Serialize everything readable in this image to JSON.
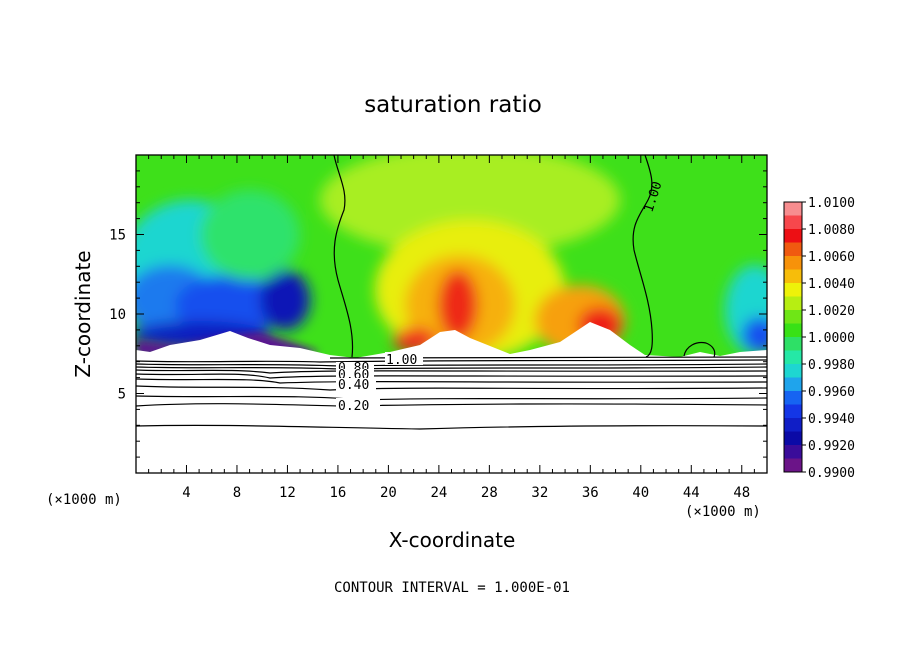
{
  "chart_data": {
    "type": "heatmap",
    "title": "saturation ratio",
    "xlabel": "X-coordinate",
    "ylabel": "Z-coordinate",
    "x_unit_label": "(×1000 m)",
    "y_unit_label": "(×1000 m)",
    "xlim": [
      0,
      50
    ],
    "ylim": [
      0,
      20
    ],
    "x_ticks": [
      "4",
      "8",
      "12",
      "16",
      "20",
      "24",
      "28",
      "32",
      "36",
      "40",
      "44",
      "48"
    ],
    "y_ticks": [
      "5",
      "10",
      "15"
    ],
    "footer": "CONTOUR INTERVAL = 1.000E-01",
    "colorbar": {
      "levels": [
        "1.0100",
        "1.0080",
        "1.0060",
        "1.0040",
        "1.0020",
        "1.0000",
        "0.9980",
        "0.9960",
        "0.9940",
        "0.9920",
        "0.9900"
      ],
      "colors": [
        "#f78d8f",
        "#f7474c",
        "#ed0f14",
        "#f05a10",
        "#f7920a",
        "#f7bd0a",
        "#eef20a",
        "#b7ee12",
        "#6fe616",
        "#38e116",
        "#2ee066",
        "#25e8a6",
        "#1ed6d1",
        "#1fa4ec",
        "#1664f2",
        "#1436e6",
        "#101ec6",
        "#0b0aa6",
        "#3a0c9a",
        "#6b1488"
      ]
    },
    "contour_labels": [
      "1.00",
      "1.00",
      "0.80",
      "0.60",
      "0.40",
      "0.20"
    ],
    "contour_levels": [
      0.2,
      0.3,
      0.4,
      0.5,
      0.6,
      0.7,
      0.8,
      0.9,
      1.0
    ]
  }
}
